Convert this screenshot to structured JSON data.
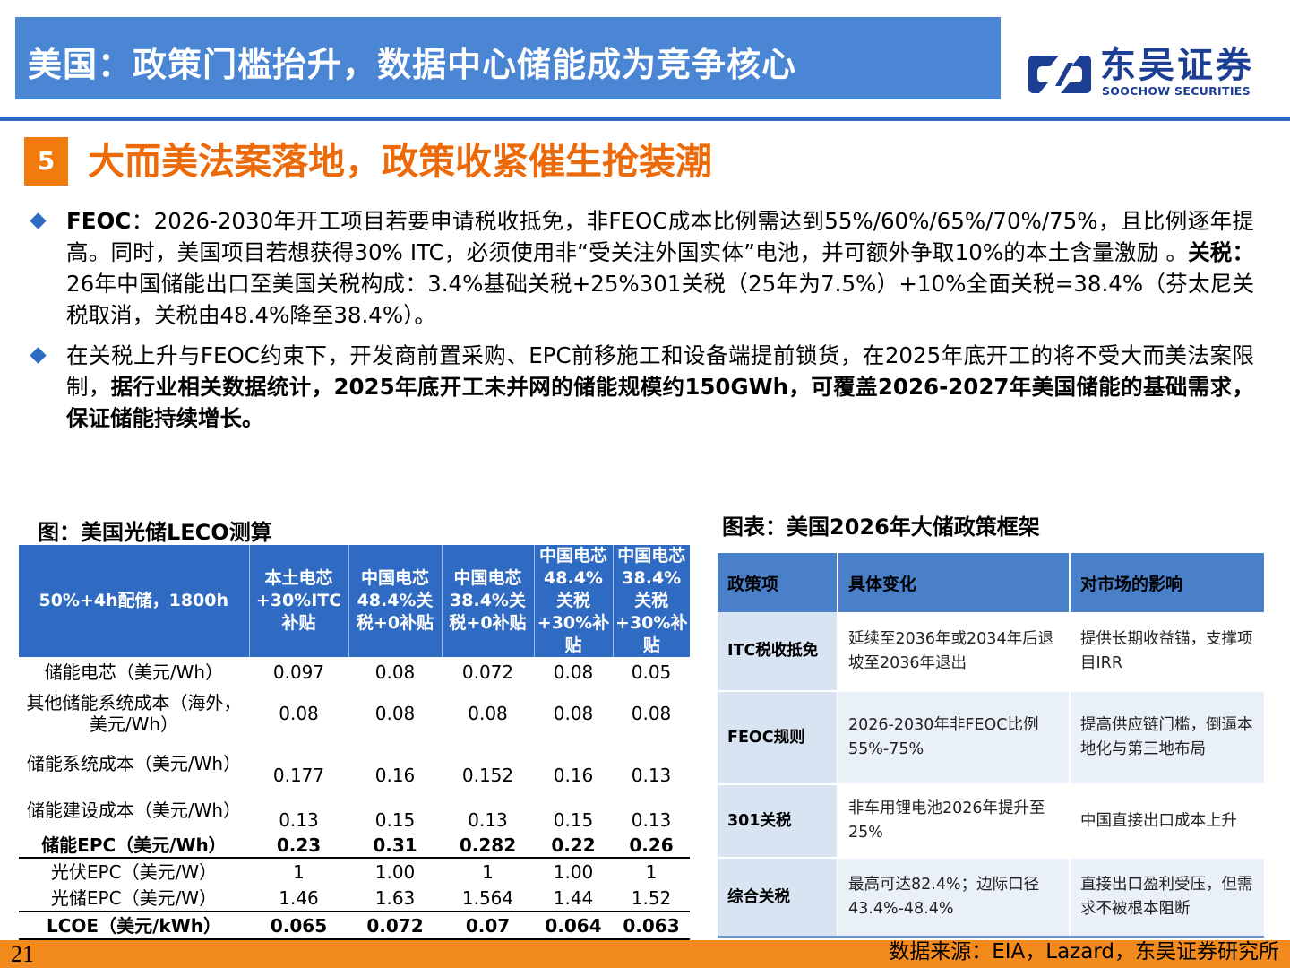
{
  "header": {
    "title": "美国：政策门槛抬升，数据中心储能成为竞争核心",
    "logo_cn": "东吴证券",
    "logo_en": "SOOCHOW SECURITIES"
  },
  "section": {
    "number": "5",
    "title": "大而美法案落地，政策收紧催生抢装潮"
  },
  "bullets": {
    "b1": {
      "p1": "FEOC",
      "p2": "：2026-2030年开工项目若要申请税收抵免，非FEOC成本比例需达到55%/60%/65%/70%/75%，且比例逐年提高。同时，美国项目若想获得30% ITC，必须使用非“受关注外国实体”电池，并可额外争取10%的本土含量激励 。",
      "p3": "关税：",
      "p4": "26年中国储能出口至美国关税构成：3.4%基础关税+25%301关税（25年为7.5%）+10%全面关税=38.4%（芬太尼关税取消，关税由48.4%降至38.4%）。"
    },
    "b2": {
      "p1": "在关税上升与FEOC约束下，开发商前置采购、EPC前移施工和设备端提前锁货，在2025年底开工的将不受大而美法案限制，",
      "p2": "据行业相关数据统计，2025年底开工未并网的储能规模约150GWh，可覆盖2026-2027年美国储能的基础需求，保证储能持续增长。"
    }
  },
  "left_table": {
    "caption": "图：美国光储LECO测算",
    "headers": [
      "50%+4h配储，1800h",
      "本土电芯+30%ITC补贴",
      "中国电芯48.4%关税+0补贴",
      "中国电芯38.4%关税+0补贴",
      "中国电芯48.4%关税+30%补贴",
      "中国电芯38.4%关税+30%补贴"
    ],
    "rows": [
      [
        "储能电芯（美元/Wh）",
        "0.097",
        "0.08",
        "0.072",
        "0.08",
        "0.05"
      ],
      [
        "其他储能系统成本（海外，美元/Wh）",
        "0.08",
        "0.08",
        "0.08",
        "0.08",
        "0.08"
      ],
      [
        "储能系统成本（美元/Wh）",
        "0.177",
        "0.16",
        "0.152",
        "0.16",
        "0.13"
      ],
      [
        "储能建设成本（美元/Wh）",
        "0.13",
        "0.15",
        "0.13",
        "0.15",
        "0.13"
      ],
      [
        "储能EPC（美元/Wh）",
        "0.23",
        "0.31",
        "0.282",
        "0.22",
        "0.26"
      ],
      [
        "光伏EPC（美元/W）",
        "1",
        "1.00",
        "1",
        "1.00",
        "1"
      ],
      [
        "光储EPC（美元/W）",
        "1.46",
        "1.63",
        "1.564",
        "1.44",
        "1.52"
      ],
      [
        "LCOE（美元/kWh）",
        "0.065",
        "0.072",
        "0.07",
        "0.064",
        "0.063"
      ]
    ]
  },
  "right_table": {
    "caption": "图表：美国2026年大储政策框架",
    "headers": [
      "政策项",
      "具体变化",
      "对市场的影响"
    ],
    "rows": [
      [
        "ITC税收抵免",
        "延续至2036年或2034年后退坡至2036年退出",
        "提供长期收益锚，支撑项目IRR"
      ],
      [
        "FEOC规则",
        "2026-2030年非FEOC比例55%-75%",
        "提高供应链门槛，倒逼本地化与第三地布局"
      ],
      [
        "301关税",
        "非车用锂电池2026年提升至25%",
        "中国直接出口成本上升"
      ],
      [
        "综合关税",
        "最高可达82.4%；边际口径43.4%-48.4%",
        "直接出口盈利受压，但需求不被根本阻断"
      ]
    ]
  },
  "footer": {
    "page": "21",
    "source": "数据来源：EIA，Lazard，东吴证券研究所"
  }
}
